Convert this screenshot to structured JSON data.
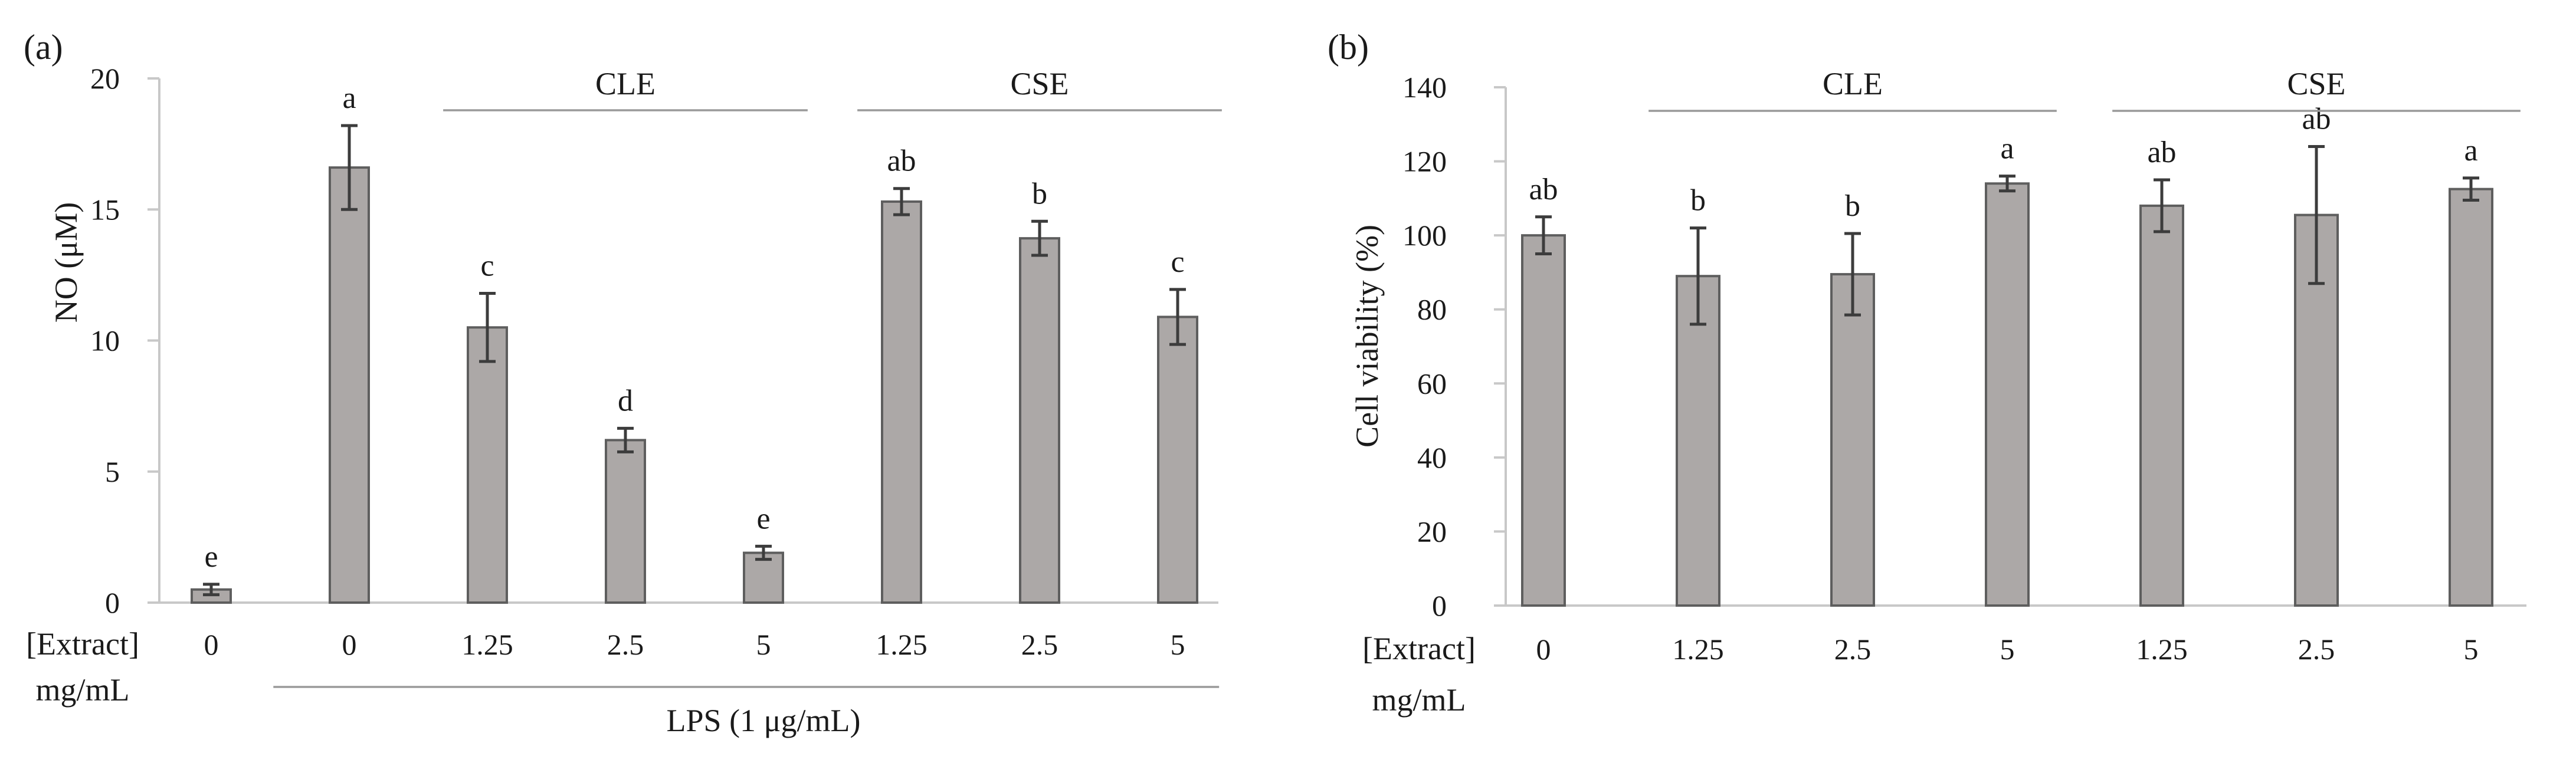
{
  "figure_labels": {
    "a": "(a)",
    "b": "(b)"
  },
  "colors": {
    "bar_fill": "#aca8a7",
    "bar_stroke": "#5e5e5e",
    "error_bar": "#3c3c3c",
    "axis_line": "#c8c8c8",
    "group_line": "#9a9a9a",
    "text": "#1a1a1a"
  },
  "chart_data": [
    {
      "panel": "(a)",
      "type": "bar",
      "ylabel": "NO (μM)",
      "xlabel_prefix": [
        "[Extract]",
        "mg/mL"
      ],
      "ylim": [
        0,
        20
      ],
      "yticks": [
        0,
        5,
        10,
        15,
        20
      ],
      "categories": [
        "0",
        "0",
        "1.25",
        "2.5",
        "5",
        "1.25",
        "2.5",
        "5"
      ],
      "values": [
        0.5,
        16.6,
        10.5,
        6.2,
        1.9,
        15.3,
        13.9,
        10.9
      ],
      "errors": [
        0.2,
        1.6,
        1.3,
        0.45,
        0.25,
        0.5,
        0.65,
        1.05
      ],
      "letters": [
        "e",
        "a",
        "c",
        "d",
        "e",
        "ab",
        "b",
        "c"
      ],
      "groups": [
        {
          "label": "CLE",
          "from": 2,
          "to": 4,
          "position": "top"
        },
        {
          "label": "CSE",
          "from": 5,
          "to": 7,
          "position": "top"
        },
        {
          "label": "LPS (1 μg/mL)",
          "from": 1,
          "to": 7,
          "position": "bottom"
        }
      ],
      "grid": false
    },
    {
      "panel": "(b)",
      "type": "bar",
      "ylabel": "Cell viability (%)",
      "xlabel_prefix": [
        "[Extract]",
        "mg/mL"
      ],
      "ylim": [
        0,
        140
      ],
      "yticks": [
        0,
        20,
        40,
        60,
        80,
        100,
        120,
        140
      ],
      "categories": [
        "0",
        "1.25",
        "2.5",
        "5",
        "1.25",
        "2.5",
        "5"
      ],
      "values": [
        100,
        89,
        89.5,
        114,
        108,
        105.5,
        112.5
      ],
      "errors": [
        5,
        13,
        11,
        2,
        7,
        18.5,
        3
      ],
      "letters": [
        "ab",
        "b",
        "b",
        "a",
        "ab",
        "ab",
        "a"
      ],
      "groups": [
        {
          "label": "CLE",
          "from": 1,
          "to": 3,
          "position": "top"
        },
        {
          "label": "CSE",
          "from": 4,
          "to": 6,
          "position": "top"
        }
      ],
      "grid": false
    }
  ]
}
